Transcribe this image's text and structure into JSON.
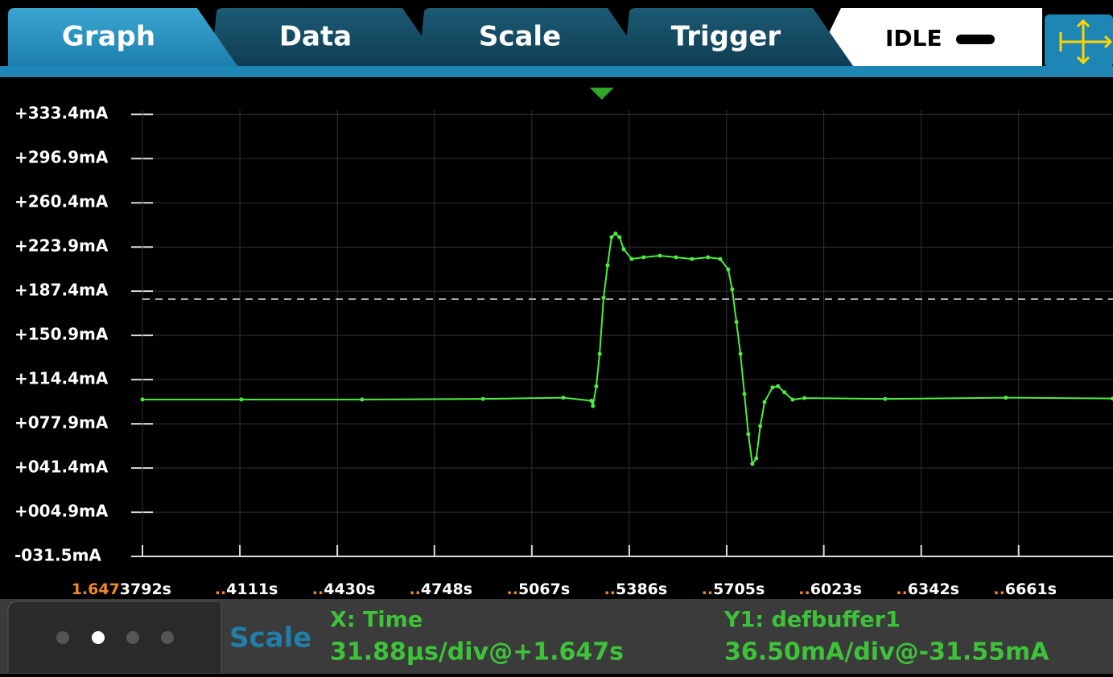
{
  "tabs": [
    "Graph",
    "Data",
    "Scale",
    "Trigger"
  ],
  "status": "IDLE",
  "chart_data": {
    "type": "line",
    "xlim": [
      1.6473792,
      1.647697
    ],
    "ylim": [
      -36.8,
      363.4
    ],
    "yticks": [
      {
        "value": 333.4,
        "label": "+333.4mA"
      },
      {
        "value": 296.9,
        "label": "+296.9mA"
      },
      {
        "value": 260.4,
        "label": "+260.4mA"
      },
      {
        "value": 223.9,
        "label": "+223.9mA"
      },
      {
        "value": 187.4,
        "label": "+187.4mA"
      },
      {
        "value": 150.9,
        "label": "+150.9mA"
      },
      {
        "value": 114.4,
        "label": "+114.4mA"
      },
      {
        "value": 77.9,
        "label": "+077.9mA"
      },
      {
        "value": 41.4,
        "label": "+041.4mA"
      },
      {
        "value": 4.9,
        "label": "+004.9mA"
      },
      {
        "value": -31.5,
        "label": "-031.5mA"
      }
    ],
    "xticks": [
      {
        "value": 1.6473792,
        "lead": "1.647",
        "label": "3792s"
      },
      {
        "value": 1.6474111,
        "lead": "..",
        "label": "4111s"
      },
      {
        "value": 1.647443,
        "lead": "..",
        "label": "4430s"
      },
      {
        "value": 1.6474748,
        "lead": "..",
        "label": "4748s"
      },
      {
        "value": 1.6475067,
        "lead": "..",
        "label": "5067s"
      },
      {
        "value": 1.6475386,
        "lead": "..",
        "label": "5386s"
      },
      {
        "value": 1.6475705,
        "lead": "..",
        "label": "5705s"
      },
      {
        "value": 1.6476023,
        "lead": "..",
        "label": "6023s"
      },
      {
        "value": 1.6476342,
        "lead": "..",
        "label": "6342s"
      },
      {
        "value": 1.6476661,
        "lead": "..",
        "label": "6661s"
      }
    ],
    "grid": true,
    "trigger_level": 180.9,
    "trigger_position": 1.6475296,
    "series": [
      {
        "color": "#4cee3c",
        "x": [
          1.6473792,
          1.6474116,
          1.6474511,
          1.6474907,
          1.647517,
          1.6475262,
          1.6475267,
          1.6475278,
          1.6475289,
          1.6475302,
          1.6475315,
          1.6475328,
          1.6475341,
          1.6475354,
          1.6475368,
          1.6475394,
          1.6475433,
          1.6475486,
          1.6475539,
          1.6475591,
          1.6475644,
          1.6475684,
          1.647571,
          1.6475723,
          1.6475737,
          1.647575,
          1.6475763,
          1.6475776,
          1.6475789,
          1.6475802,
          1.6475815,
          1.6475829,
          1.6475855,
          1.6475873,
          1.6475894,
          1.6475921,
          1.647596,
          1.6476224,
          1.6476619,
          1.6476969
        ],
        "values": [
          98,
          98,
          98,
          98.5,
          99.5,
          97,
          92.6,
          109,
          135.7,
          182,
          208.8,
          232,
          235,
          232,
          222,
          214,
          215.4,
          216.7,
          215.4,
          214,
          215.4,
          214,
          205.4,
          189,
          162,
          135.7,
          102.6,
          69.4,
          44.8,
          49.5,
          76,
          95.9,
          108,
          109,
          104,
          97.9,
          99.2,
          98.5,
          99.5,
          98.8
        ]
      }
    ]
  },
  "footer": {
    "panel": "Scale",
    "x_title": "X: Time",
    "x_scale": "31.88µs/div@+1.647s",
    "y_title": "Y1: defbuffer1",
    "y_scale": "36.50mA/div@-31.55mA"
  }
}
